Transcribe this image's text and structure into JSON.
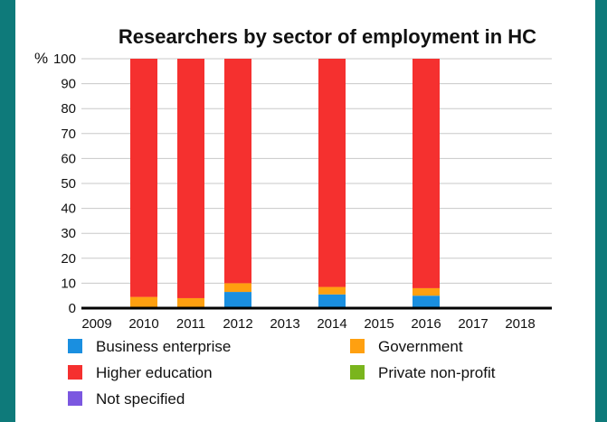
{
  "chart_data": {
    "type": "bar",
    "stacked": true,
    "title": "Researchers by sector of employment in HC",
    "ylabel": "%",
    "ylim": [
      0,
      100
    ],
    "yticks": [
      0,
      10,
      20,
      30,
      40,
      50,
      60,
      70,
      80,
      90,
      100
    ],
    "grid": true,
    "legend_position": "bottom",
    "categories": [
      "2009",
      "2010",
      "2011",
      "2012",
      "2013",
      "2014",
      "2015",
      "2016",
      "2017",
      "2018"
    ],
    "series": [
      {
        "name": "Business enterprise",
        "color": "#1a8fe0",
        "values": [
          0,
          0,
          0,
          6.5,
          0,
          5.5,
          0,
          5,
          0,
          0
        ]
      },
      {
        "name": "Government",
        "color": "#ffa010",
        "values": [
          0,
          4.5,
          4,
          3.5,
          0,
          3,
          0,
          3,
          0,
          0
        ]
      },
      {
        "name": "Higher education",
        "color": "#f5302f",
        "values": [
          0,
          95.5,
          96,
          90,
          0,
          91.5,
          0,
          92,
          0,
          0
        ]
      },
      {
        "name": "Private non-profit",
        "color": "#7ab51d",
        "values": [
          0,
          0,
          0,
          0,
          0,
          0,
          0,
          0,
          0,
          0
        ]
      },
      {
        "name": "Not specified",
        "color": "#7b57e0",
        "values": [
          0,
          0,
          0,
          0,
          0,
          0,
          0,
          0,
          0,
          0
        ]
      }
    ]
  }
}
